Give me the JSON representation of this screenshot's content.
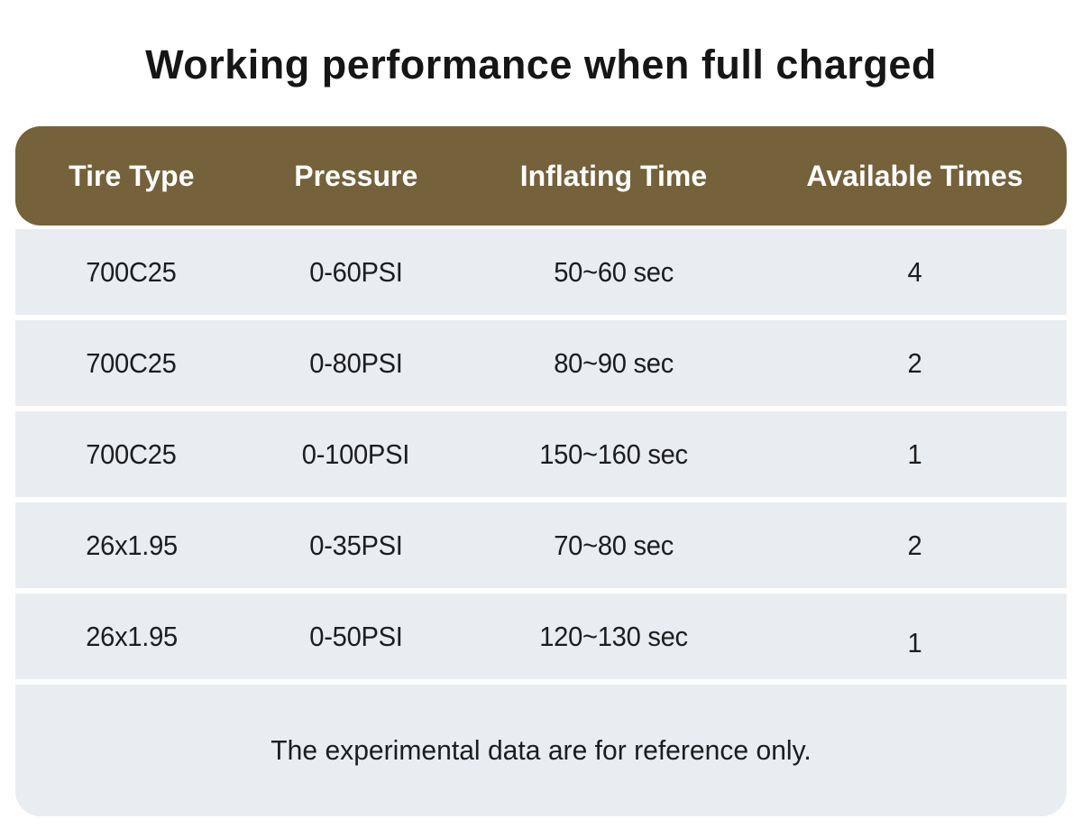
{
  "title": "Working performance when full charged",
  "footnote": "The experimental data are for reference only.",
  "chart_data": {
    "type": "table",
    "title": "Working performance when full charged",
    "columns": [
      "Tire Type",
      "Pressure",
      "Inflating Time",
      "Available Times"
    ],
    "rows": [
      [
        "700C25",
        "0-60PSI",
        "50~60 sec",
        "4"
      ],
      [
        "700C25",
        "0-80PSI",
        "80~90 sec",
        "2"
      ],
      [
        "700C25",
        "0-100PSI",
        "150~160 sec",
        "1"
      ],
      [
        "26x1.95",
        "0-35PSI",
        "70~80 sec",
        "2"
      ],
      [
        "26x1.95",
        "0-50PSI",
        "120~130 sec",
        "1"
      ]
    ],
    "note": "The experimental data are for reference only."
  },
  "colors": {
    "header_bg": "#75613A",
    "header_text": "#FFFFFF",
    "row_bg": "#E9ECF1",
    "cell_text": "#1D1D1F",
    "title_text": "#161616",
    "page_bg": "#FFFFFF"
  }
}
